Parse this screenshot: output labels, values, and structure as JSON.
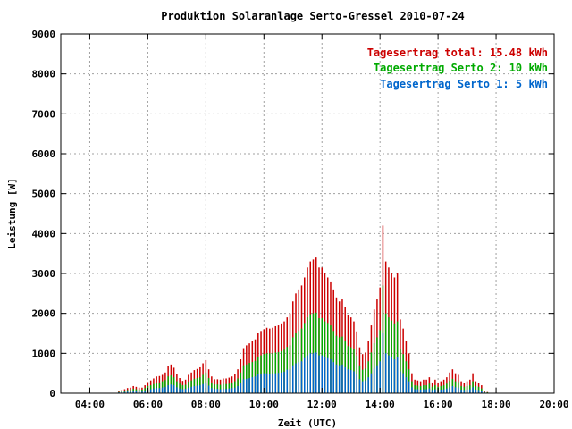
{
  "chart_data": {
    "type": "bar",
    "title": "Produktion Solaranlage Serto-Gressel 2010-07-24",
    "xlabel": "Zeit (UTC)",
    "ylabel": "Leistung [W]",
    "xlim": [
      "03:00",
      "20:00"
    ],
    "ylim": [
      0,
      9000
    ],
    "grid": true,
    "stacked": true,
    "legend_position": "top-right",
    "y_ticks": [
      "0",
      "1000",
      "2000",
      "3000",
      "4000",
      "5000",
      "6000",
      "7000",
      "8000",
      "9000"
    ],
    "x_ticks": [
      "04:00",
      "06:00",
      "08:00",
      "10:00",
      "12:00",
      "14:00",
      "16:00",
      "18:00",
      "20:00"
    ],
    "legend": [
      {
        "label": "Tagesertrag total: 15.48 kWh",
        "color": "#cc0000"
      },
      {
        "label": "Tagesertrag Serto 2: 10 kWh",
        "color": "#00aa00"
      },
      {
        "label": "Tagesertrag Serto 1: 5 kWh",
        "color": "#0066cc"
      }
    ],
    "interval_minutes": 6,
    "x_start": "05:00",
    "series": [
      {
        "name": "Serto 1",
        "color": "#0066cc",
        "values": [
          20,
          30,
          30,
          40,
          40,
          60,
          50,
          40,
          40,
          60,
          80,
          100,
          120,
          130,
          130,
          140,
          160,
          200,
          220,
          200,
          150,
          120,
          100,
          110,
          140,
          160,
          180,
          190,
          200,
          230,
          260,
          190,
          130,
          110,
          110,
          100,
          110,
          110,
          120,
          130,
          140,
          180,
          250,
          350,
          360,
          380,
          400,
          420,
          470,
          480,
          500,
          500,
          490,
          500,
          500,
          510,
          520,
          540,
          590,
          600,
          700,
          750,
          780,
          800,
          880,
          950,
          1000,
          1000,
          1020,
          950,
          950,
          900,
          880,
          850,
          780,
          720,
          700,
          720,
          650,
          600,
          580,
          550,
          480,
          350,
          300,
          320,
          400,
          500,
          620,
          700,
          800,
          1500,
          1000,
          950,
          900,
          850,
          900,
          550,
          500,
          400,
          300,
          150,
          100,
          100,
          90,
          100,
          100,
          120,
          80,
          100,
          80,
          90,
          100,
          120,
          150,
          180,
          150,
          140,
          90,
          80,
          90,
          100,
          150,
          90,
          80,
          60,
          20,
          10
        ]
      },
      {
        "name": "Serto 2",
        "color": "#00aa00",
        "values": [
          30,
          50,
          60,
          80,
          80,
          110,
          100,
          90,
          90,
          130,
          180,
          200,
          230,
          260,
          270,
          300,
          330,
          420,
          450,
          400,
          300,
          240,
          200,
          210,
          290,
          320,
          360,
          380,
          400,
          460,
          520,
          380,
          260,
          220,
          220,
          210,
          230,
          230,
          240,
          260,
          300,
          370,
          520,
          700,
          720,
          760,
          780,
          810,
          920,
          950,
          980,
          1000,
          1000,
          1000,
          1020,
          1030,
          1050,
          1090,
          1160,
          1200,
          1400,
          1500,
          1560,
          1620,
          1760,
          1900,
          1980,
          2000,
          2020,
          1880,
          1880,
          1800,
          1760,
          1700,
          1560,
          1440,
          1400,
          1420,
          1300,
          1180,
          1150,
          1100,
          940,
          700,
          590,
          620,
          800,
          1020,
          1250,
          1400,
          1580,
          2700,
          2000,
          1900,
          1820,
          1750,
          1800,
          1100,
          980,
          800,
          600,
          300,
          200,
          190,
          180,
          200,
          200,
          240,
          160,
          200,
          160,
          180,
          200,
          240,
          310,
          360,
          300,
          280,
          180,
          160,
          180,
          200,
          300,
          180,
          160,
          120,
          30,
          20
        ]
      },
      {
        "name": "total",
        "color": "#cc0000",
        "values": [
          60,
          80,
          100,
          130,
          140,
          180,
          160,
          140,
          140,
          200,
          280,
          320,
          370,
          420,
          430,
          460,
          520,
          680,
          720,
          640,
          480,
          380,
          310,
          340,
          460,
          520,
          580,
          610,
          650,
          750,
          830,
          600,
          420,
          350,
          350,
          340,
          370,
          370,
          390,
          420,
          480,
          600,
          850,
          1130,
          1200,
          1250,
          1300,
          1350,
          1500,
          1560,
          1600,
          1640,
          1620,
          1640,
          1680,
          1700,
          1750,
          1800,
          1900,
          2000,
          2300,
          2500,
          2600,
          2700,
          2900,
          3150,
          3300,
          3350,
          3400,
          3150,
          3150,
          3000,
          2900,
          2800,
          2600,
          2400,
          2300,
          2350,
          2150,
          1950,
          1900,
          1800,
          1550,
          1150,
          980,
          1020,
          1300,
          1700,
          2100,
          2350,
          2650,
          4200,
          3300,
          3150,
          3000,
          2900,
          3000,
          1850,
          1620,
          1300,
          1000,
          500,
          340,
          320,
          300,
          340,
          340,
          400,
          270,
          340,
          270,
          300,
          340,
          400,
          520,
          600,
          500,
          460,
          300,
          260,
          300,
          340,
          500,
          300,
          260,
          200,
          50,
          30
        ]
      }
    ]
  }
}
